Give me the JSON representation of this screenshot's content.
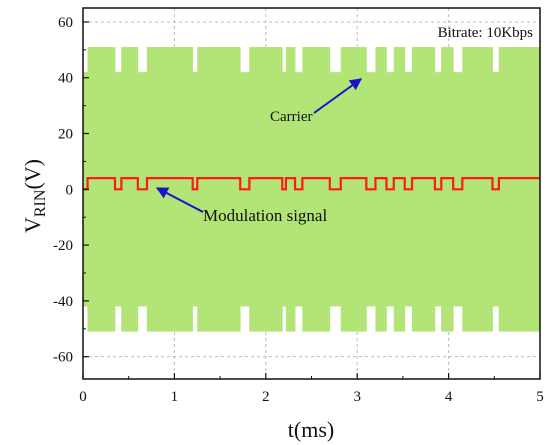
{
  "chart_data": {
    "type": "line",
    "title": "",
    "xlabel": "t(ms)",
    "ylabel_main": "V",
    "ylabel_sub": "RIN",
    "ylabel_tail": "(V)",
    "xlim": [
      0,
      5
    ],
    "ylim": [
      -68,
      65
    ],
    "xticks": [
      0,
      1,
      2,
      3,
      4,
      5
    ],
    "yticks": [
      -60,
      -40,
      -20,
      0,
      20,
      40,
      60
    ],
    "grid": true,
    "annotations": {
      "bitrate": "Bitrate: 10Kbps",
      "carrier": "Carrier",
      "modulation": "Modulation signal"
    },
    "series": [
      {
        "role": "carrier",
        "color": "#b5e67a",
        "envelope_high": 51,
        "envelope_low": 42,
        "segments": [
          [
            0,
            0.05,
            0
          ],
          [
            0.05,
            0.35,
            1
          ],
          [
            0.35,
            0.42,
            0
          ],
          [
            0.42,
            0.6,
            1
          ],
          [
            0.6,
            0.7,
            0
          ],
          [
            0.7,
            1.2,
            1
          ],
          [
            1.2,
            1.25,
            0
          ],
          [
            1.25,
            1.72,
            1
          ],
          [
            1.72,
            1.82,
            0
          ],
          [
            1.82,
            2.18,
            1
          ],
          [
            2.18,
            2.22,
            0
          ],
          [
            2.22,
            2.32,
            1
          ],
          [
            2.32,
            2.4,
            0
          ],
          [
            2.4,
            2.7,
            1
          ],
          [
            2.7,
            2.82,
            0
          ],
          [
            2.82,
            3.1,
            1
          ],
          [
            3.1,
            3.2,
            0
          ],
          [
            3.2,
            3.32,
            1
          ],
          [
            3.32,
            3.4,
            0
          ],
          [
            3.4,
            3.52,
            1
          ],
          [
            3.52,
            3.6,
            0
          ],
          [
            3.6,
            3.85,
            1
          ],
          [
            3.85,
            3.92,
            0
          ],
          [
            3.92,
            4.05,
            1
          ],
          [
            4.05,
            4.15,
            0
          ],
          [
            4.15,
            4.48,
            1
          ],
          [
            4.48,
            4.55,
            0
          ],
          [
            4.55,
            5,
            1
          ]
        ]
      },
      {
        "role": "modulation",
        "color": "#ff1a1a",
        "high": 4,
        "low": 0,
        "segments": [
          [
            0,
            0.05,
            0
          ],
          [
            0.05,
            0.35,
            1
          ],
          [
            0.35,
            0.42,
            0
          ],
          [
            0.42,
            0.6,
            1
          ],
          [
            0.6,
            0.7,
            0
          ],
          [
            0.7,
            1.2,
            1
          ],
          [
            1.2,
            1.25,
            0
          ],
          [
            1.25,
            1.72,
            1
          ],
          [
            1.72,
            1.82,
            0
          ],
          [
            1.82,
            2.18,
            1
          ],
          [
            2.18,
            2.22,
            0
          ],
          [
            2.22,
            2.32,
            1
          ],
          [
            2.32,
            2.4,
            0
          ],
          [
            2.4,
            2.7,
            1
          ],
          [
            2.7,
            2.82,
            0
          ],
          [
            2.82,
            3.1,
            1
          ],
          [
            3.1,
            3.2,
            0
          ],
          [
            3.2,
            3.32,
            1
          ],
          [
            3.32,
            3.4,
            0
          ],
          [
            3.4,
            3.52,
            1
          ],
          [
            3.52,
            3.6,
            0
          ],
          [
            3.6,
            3.85,
            1
          ],
          [
            3.85,
            3.92,
            0
          ],
          [
            3.92,
            4.05,
            1
          ],
          [
            4.05,
            4.15,
            0
          ],
          [
            4.15,
            4.48,
            1
          ],
          [
            4.48,
            4.55,
            0
          ],
          [
            4.55,
            5,
            1
          ]
        ]
      }
    ],
    "arrow_color": "#1a10c8"
  }
}
